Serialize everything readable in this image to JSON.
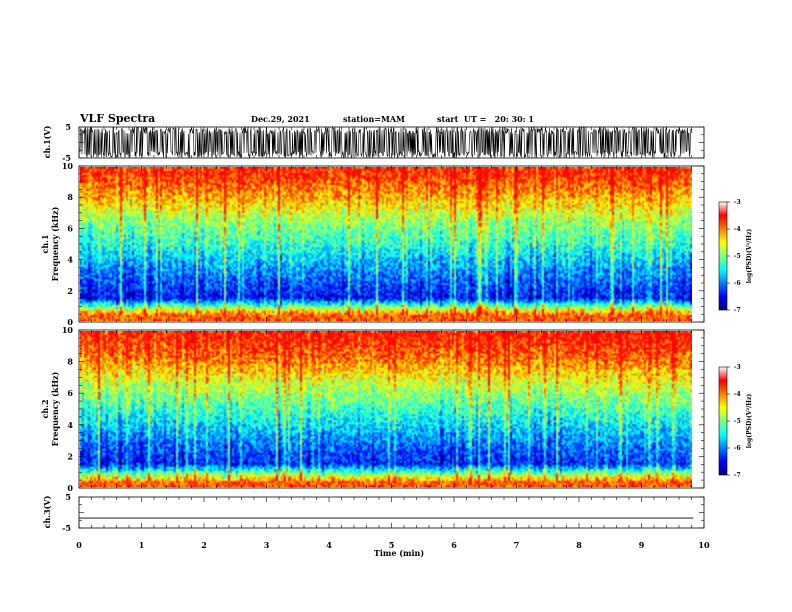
{
  "header": {
    "title": "VLF Spectra",
    "date": "Dec.29, 2021",
    "station": "station=MAM",
    "start": "start  UT =   20: 30: 1"
  },
  "chart_data": [
    {
      "type": "line",
      "panel": "ch1-waveform",
      "ylabel": "ch.1(V)",
      "ylim": [
        -5,
        5
      ],
      "yticks": [
        "5",
        "-5"
      ],
      "xlim": [
        0,
        10
      ],
      "description_series": [
        {
          "values_range": [
            -5,
            5
          ],
          "color": "#000000"
        }
      ]
    },
    {
      "type": "heatmap",
      "panel": "ch1-spectrogram",
      "ylabel": "ch.1\nFrequency (kHz)",
      "ylabel_lines": [
        "ch.1",
        "Frequency (kHz)"
      ],
      "ylim": [
        0,
        10
      ],
      "yticks": [
        "0",
        "2",
        "4",
        "6",
        "8",
        "10"
      ],
      "xlim": [
        0,
        9.83
      ],
      "colorbar": {
        "label": "log(PSD)(V²/Hz)",
        "range": [
          -7,
          -3
        ],
        "ticks": [
          "-3",
          "-4",
          "-5",
          "-6",
          "-7"
        ]
      },
      "profile": [
        {
          "freq_khz": 0.5,
          "level": -3.6
        },
        {
          "freq_khz": 1.5,
          "level": -6.4
        },
        {
          "freq_khz": 3.0,
          "level": -5.9
        },
        {
          "freq_khz": 5.0,
          "level": -5.1
        },
        {
          "freq_khz": 6.5,
          "level": -4.6
        },
        {
          "freq_khz": 8.0,
          "level": -3.8
        },
        {
          "freq_khz": 9.5,
          "level": -3.2
        }
      ]
    },
    {
      "type": "heatmap",
      "panel": "ch2-spectrogram",
      "ylabel_lines": [
        "ch.2",
        "Frequency (kHz)"
      ],
      "ylim": [
        0,
        10
      ],
      "yticks": [
        "0",
        "2",
        "4",
        "6",
        "8",
        "10"
      ],
      "xlim": [
        0,
        9.83
      ],
      "colorbar": {
        "label": "log(PSD)(V²/Hz)",
        "range": [
          -7,
          -3
        ],
        "ticks": [
          "-3",
          "-4",
          "-5",
          "-6",
          "-7"
        ]
      },
      "profile": [
        {
          "freq_khz": 0.5,
          "level": -3.8
        },
        {
          "freq_khz": 1.5,
          "level": -6.3
        },
        {
          "freq_khz": 3.0,
          "level": -5.8
        },
        {
          "freq_khz": 5.0,
          "level": -5.0
        },
        {
          "freq_khz": 6.5,
          "level": -4.4
        },
        {
          "freq_khz": 8.0,
          "level": -3.6
        },
        {
          "freq_khz": 9.5,
          "level": -3.1
        }
      ]
    },
    {
      "type": "line",
      "panel": "ch3-waveform",
      "ylabel": "ch.3(V)",
      "ylim": [
        -5,
        5
      ],
      "yticks": [
        "5",
        "-5"
      ],
      "xlim": [
        0,
        10
      ],
      "series": [
        {
          "x": [
            0,
            9.83
          ],
          "values": [
            -1.8,
            -1.8
          ],
          "color": "#000000"
        }
      ]
    }
  ],
  "x_axis": {
    "label": "Time (min)",
    "ticks": [
      "0",
      "1",
      "2",
      "3",
      "4",
      "5",
      "6",
      "7",
      "8",
      "9",
      "10"
    ],
    "range": [
      0,
      10
    ]
  },
  "colors": {
    "background": "#ffffff",
    "ink": "#000000",
    "colormap": [
      "#00007f",
      "#0000ff",
      "#007fff",
      "#00ffff",
      "#7fff7f",
      "#ffff00",
      "#ff7f00",
      "#ff0000",
      "#ffffff"
    ]
  }
}
